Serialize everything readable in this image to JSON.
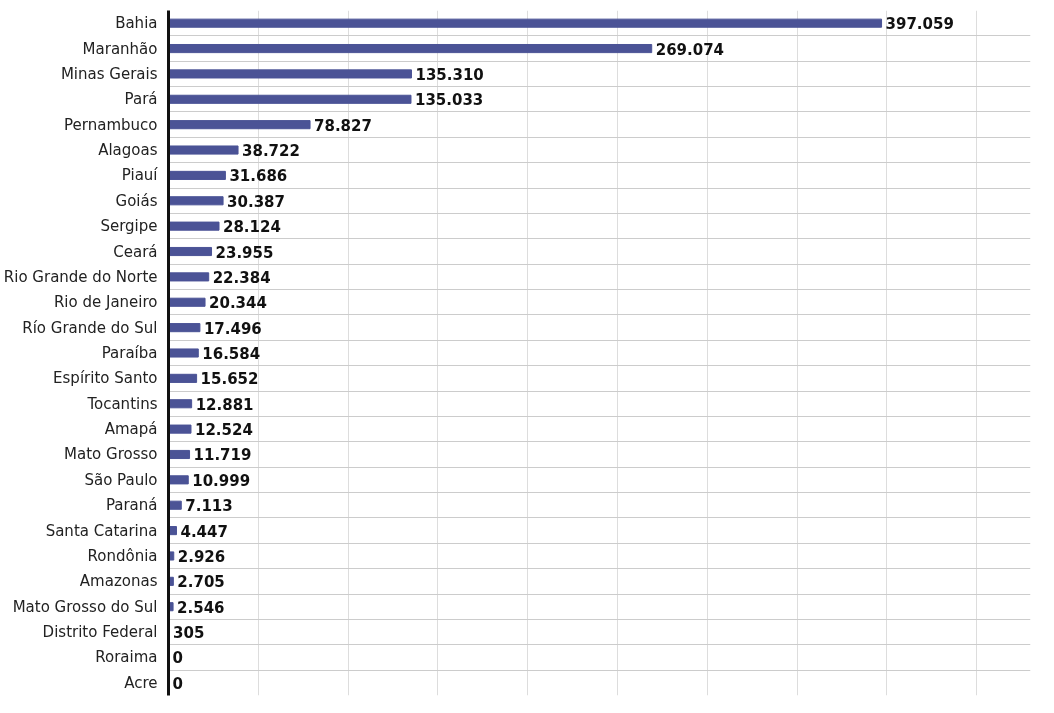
{
  "chart_data": {
    "type": "bar",
    "orientation": "horizontal",
    "categories": [
      "Bahia",
      "Maranhão",
      "Minas Gerais",
      "Pará",
      "Pernambuco",
      "Alagoas",
      "Piauí",
      "Goiás",
      "Sergipe",
      "Ceará",
      "Rio Grande do Norte",
      "Rio de Janeiro",
      "Río Grande do Sul",
      "Paraíba",
      "Espírito Santo",
      "Tocantins",
      "Amapá",
      "Mato Grosso",
      "São Paulo",
      "Paraná",
      "Santa Catarina",
      "Rondônia",
      "Amazonas",
      "Mato Grosso do Sul",
      "Distrito Federal",
      "Roraima",
      "Acre"
    ],
    "values": [
      397059,
      269074,
      135310,
      135033,
      78827,
      38722,
      31686,
      30387,
      28124,
      23955,
      22384,
      20344,
      17496,
      16584,
      15652,
      12881,
      12524,
      11719,
      10999,
      7113,
      4447,
      2926,
      2705,
      2546,
      305,
      0,
      0
    ],
    "value_labels": [
      "397.059",
      "269.074",
      "135.310",
      "135.033",
      "78.827",
      "38.722",
      "31.686",
      "30.387",
      "28.124",
      "23.955",
      "22.384",
      "20.344",
      "17.496",
      "16.584",
      "15.652",
      "12.881",
      "12.524",
      "11.719",
      "10.999",
      "7.113",
      "4.447",
      "2.926",
      "2.705",
      "2.546",
      "305",
      "0",
      "0"
    ],
    "color": "#4b5396",
    "xlim": [
      0,
      480000
    ],
    "xticks": [
      {
        "value": 0,
        "label": null
      },
      {
        "value": 50000,
        "label": null
      },
      {
        "value": 100000,
        "label": null
      },
      {
        "value": 150000,
        "label": null
      },
      {
        "value": 200000,
        "label": null
      },
      {
        "value": 250000,
        "label": null
      },
      {
        "value": 300000,
        "label": null
      },
      {
        "value": 350000,
        "label": null
      },
      {
        "value": 400000,
        "label": null
      },
      {
        "value": 450000,
        "label": null
      }
    ],
    "tick_labels": "y",
    "grid": true
  }
}
